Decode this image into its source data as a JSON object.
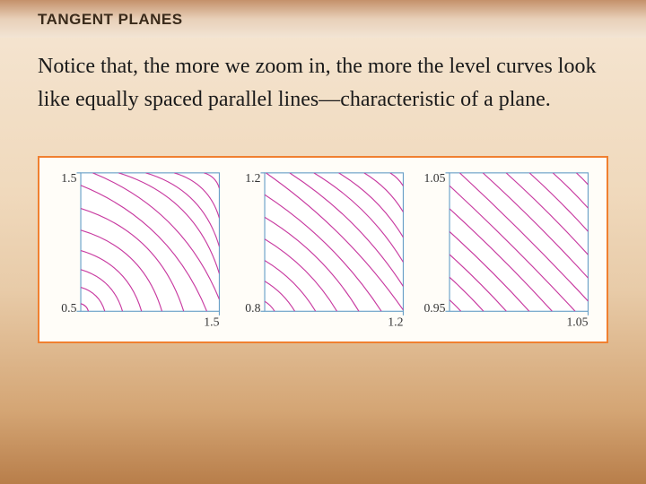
{
  "header": {
    "title": "TANGENT PLANES"
  },
  "body": {
    "text": "Notice that, the more we zoom in, the more the level curves look like equally spaced parallel lines—characteristic of a plane."
  },
  "figure": {
    "frame_border_color": "#f08030",
    "frame_background": "#fffdf8",
    "axis_label_color": "#333333",
    "axis_label_fontsize": 12,
    "axis_label_fontfamily": "Times New Roman, serif",
    "plot_border_color": "#6aa0c8",
    "plot_background": "#ffffff",
    "curve_stroke": "#c83aa0",
    "curve_stroke_width": 1,
    "panel_size": 135,
    "panels": [
      {
        "label_tl": "1.5",
        "label_bl": "0.5",
        "label_br": "1.5",
        "n_curves": 12,
        "curvature": 0.55,
        "spacing_ease": 0.35
      },
      {
        "label_tl": "1.2",
        "label_bl": "0.8",
        "label_br": "1.2",
        "n_curves": 12,
        "curvature": 0.25,
        "spacing_ease": 0.15
      },
      {
        "label_tl": "1.05",
        "label_bl": "0.95",
        "label_br": "1.05",
        "n_curves": 12,
        "curvature": 0.05,
        "spacing_ease": 0.02
      }
    ]
  }
}
